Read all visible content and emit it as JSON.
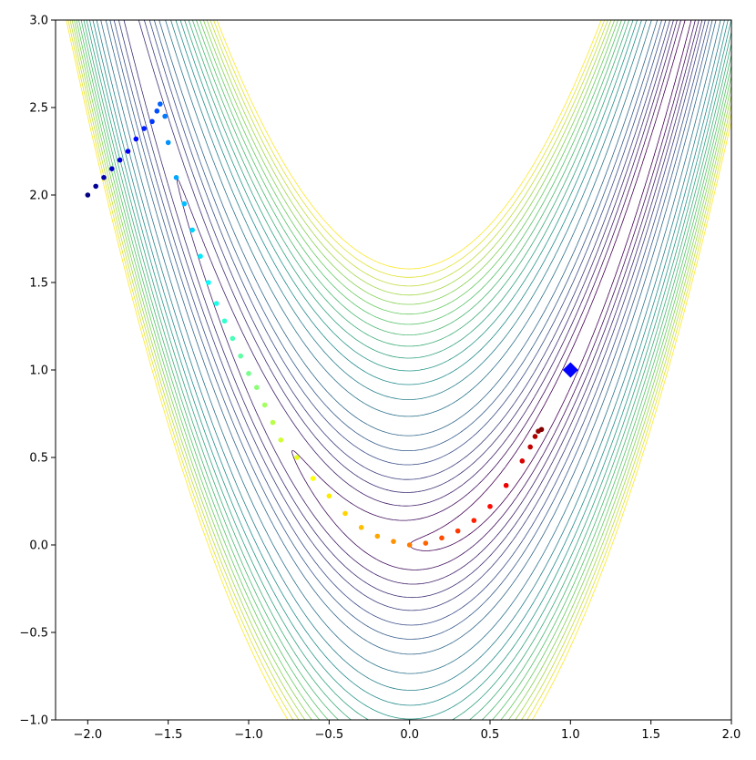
{
  "chart_data": {
    "type": "scatter",
    "title": "",
    "xlabel": "",
    "ylabel": "",
    "xlim": [
      -2.2,
      2.0
    ],
    "ylim": [
      -1.0,
      3.0
    ],
    "grid": false,
    "legend": "none",
    "x_ticks": [
      -2.0,
      -1.5,
      -1.0,
      -0.5,
      0.0,
      0.5,
      1.0,
      1.5,
      2.0
    ],
    "x_tick_labels": [
      "−2.0",
      "−1.5",
      "−1.0",
      "−0.5",
      "0.0",
      "0.5",
      "1.0",
      "1.5",
      "2.0"
    ],
    "y_ticks": [
      -1.0,
      -0.5,
      0.0,
      0.5,
      1.0,
      1.5,
      2.0,
      2.5,
      3.0
    ],
    "y_tick_labels": [
      "−1.0",
      "−0.5",
      "0.0",
      "0.5",
      "1.0",
      "1.5",
      "2.0",
      "2.5",
      "3.0"
    ],
    "background": {
      "type": "contour",
      "function": "rosenbrock",
      "levels": [
        1,
        3,
        6,
        10,
        15,
        22,
        30,
        40,
        55,
        70,
        85,
        100,
        115,
        130,
        145,
        160,
        175,
        190,
        205,
        220,
        235,
        250
      ],
      "colormap": "viridis"
    },
    "series": [
      {
        "marker": "circle",
        "colormap": "jet",
        "points": [
          [
            -2.0,
            2.0
          ],
          [
            -1.95,
            2.05
          ],
          [
            -1.9,
            2.1
          ],
          [
            -1.85,
            2.15
          ],
          [
            -1.8,
            2.2
          ],
          [
            -1.75,
            2.25
          ],
          [
            -1.7,
            2.32
          ],
          [
            -1.65,
            2.38
          ],
          [
            -1.6,
            2.42
          ],
          [
            -1.57,
            2.48
          ],
          [
            -1.55,
            2.52
          ],
          [
            -1.52,
            2.45
          ],
          [
            -1.5,
            2.3
          ],
          [
            -1.45,
            2.1
          ],
          [
            -1.4,
            1.95
          ],
          [
            -1.35,
            1.8
          ],
          [
            -1.3,
            1.65
          ],
          [
            -1.25,
            1.5
          ],
          [
            -1.2,
            1.38
          ],
          [
            -1.15,
            1.28
          ],
          [
            -1.1,
            1.18
          ],
          [
            -1.05,
            1.08
          ],
          [
            -1.0,
            0.98
          ],
          [
            -0.95,
            0.9
          ],
          [
            -0.9,
            0.8
          ],
          [
            -0.85,
            0.7
          ],
          [
            -0.8,
            0.6
          ],
          [
            -0.7,
            0.5
          ],
          [
            -0.6,
            0.38
          ],
          [
            -0.5,
            0.28
          ],
          [
            -0.4,
            0.18
          ],
          [
            -0.3,
            0.1
          ],
          [
            -0.2,
            0.05
          ],
          [
            -0.1,
            0.02
          ],
          [
            0.0,
            0.0
          ],
          [
            0.1,
            0.01
          ],
          [
            0.2,
            0.04
          ],
          [
            0.3,
            0.08
          ],
          [
            0.4,
            0.14
          ],
          [
            0.5,
            0.22
          ],
          [
            0.6,
            0.34
          ],
          [
            0.7,
            0.48
          ],
          [
            0.75,
            0.56
          ],
          [
            0.78,
            0.62
          ],
          [
            0.8,
            0.65
          ],
          [
            0.82,
            0.66
          ]
        ]
      }
    ],
    "annotations": [
      {
        "marker": "diamond",
        "color": "#0000ff",
        "x": 1.0,
        "y": 1.0
      }
    ],
    "colors": {
      "axes": "#000000",
      "target_marker": "#0000ff"
    }
  }
}
